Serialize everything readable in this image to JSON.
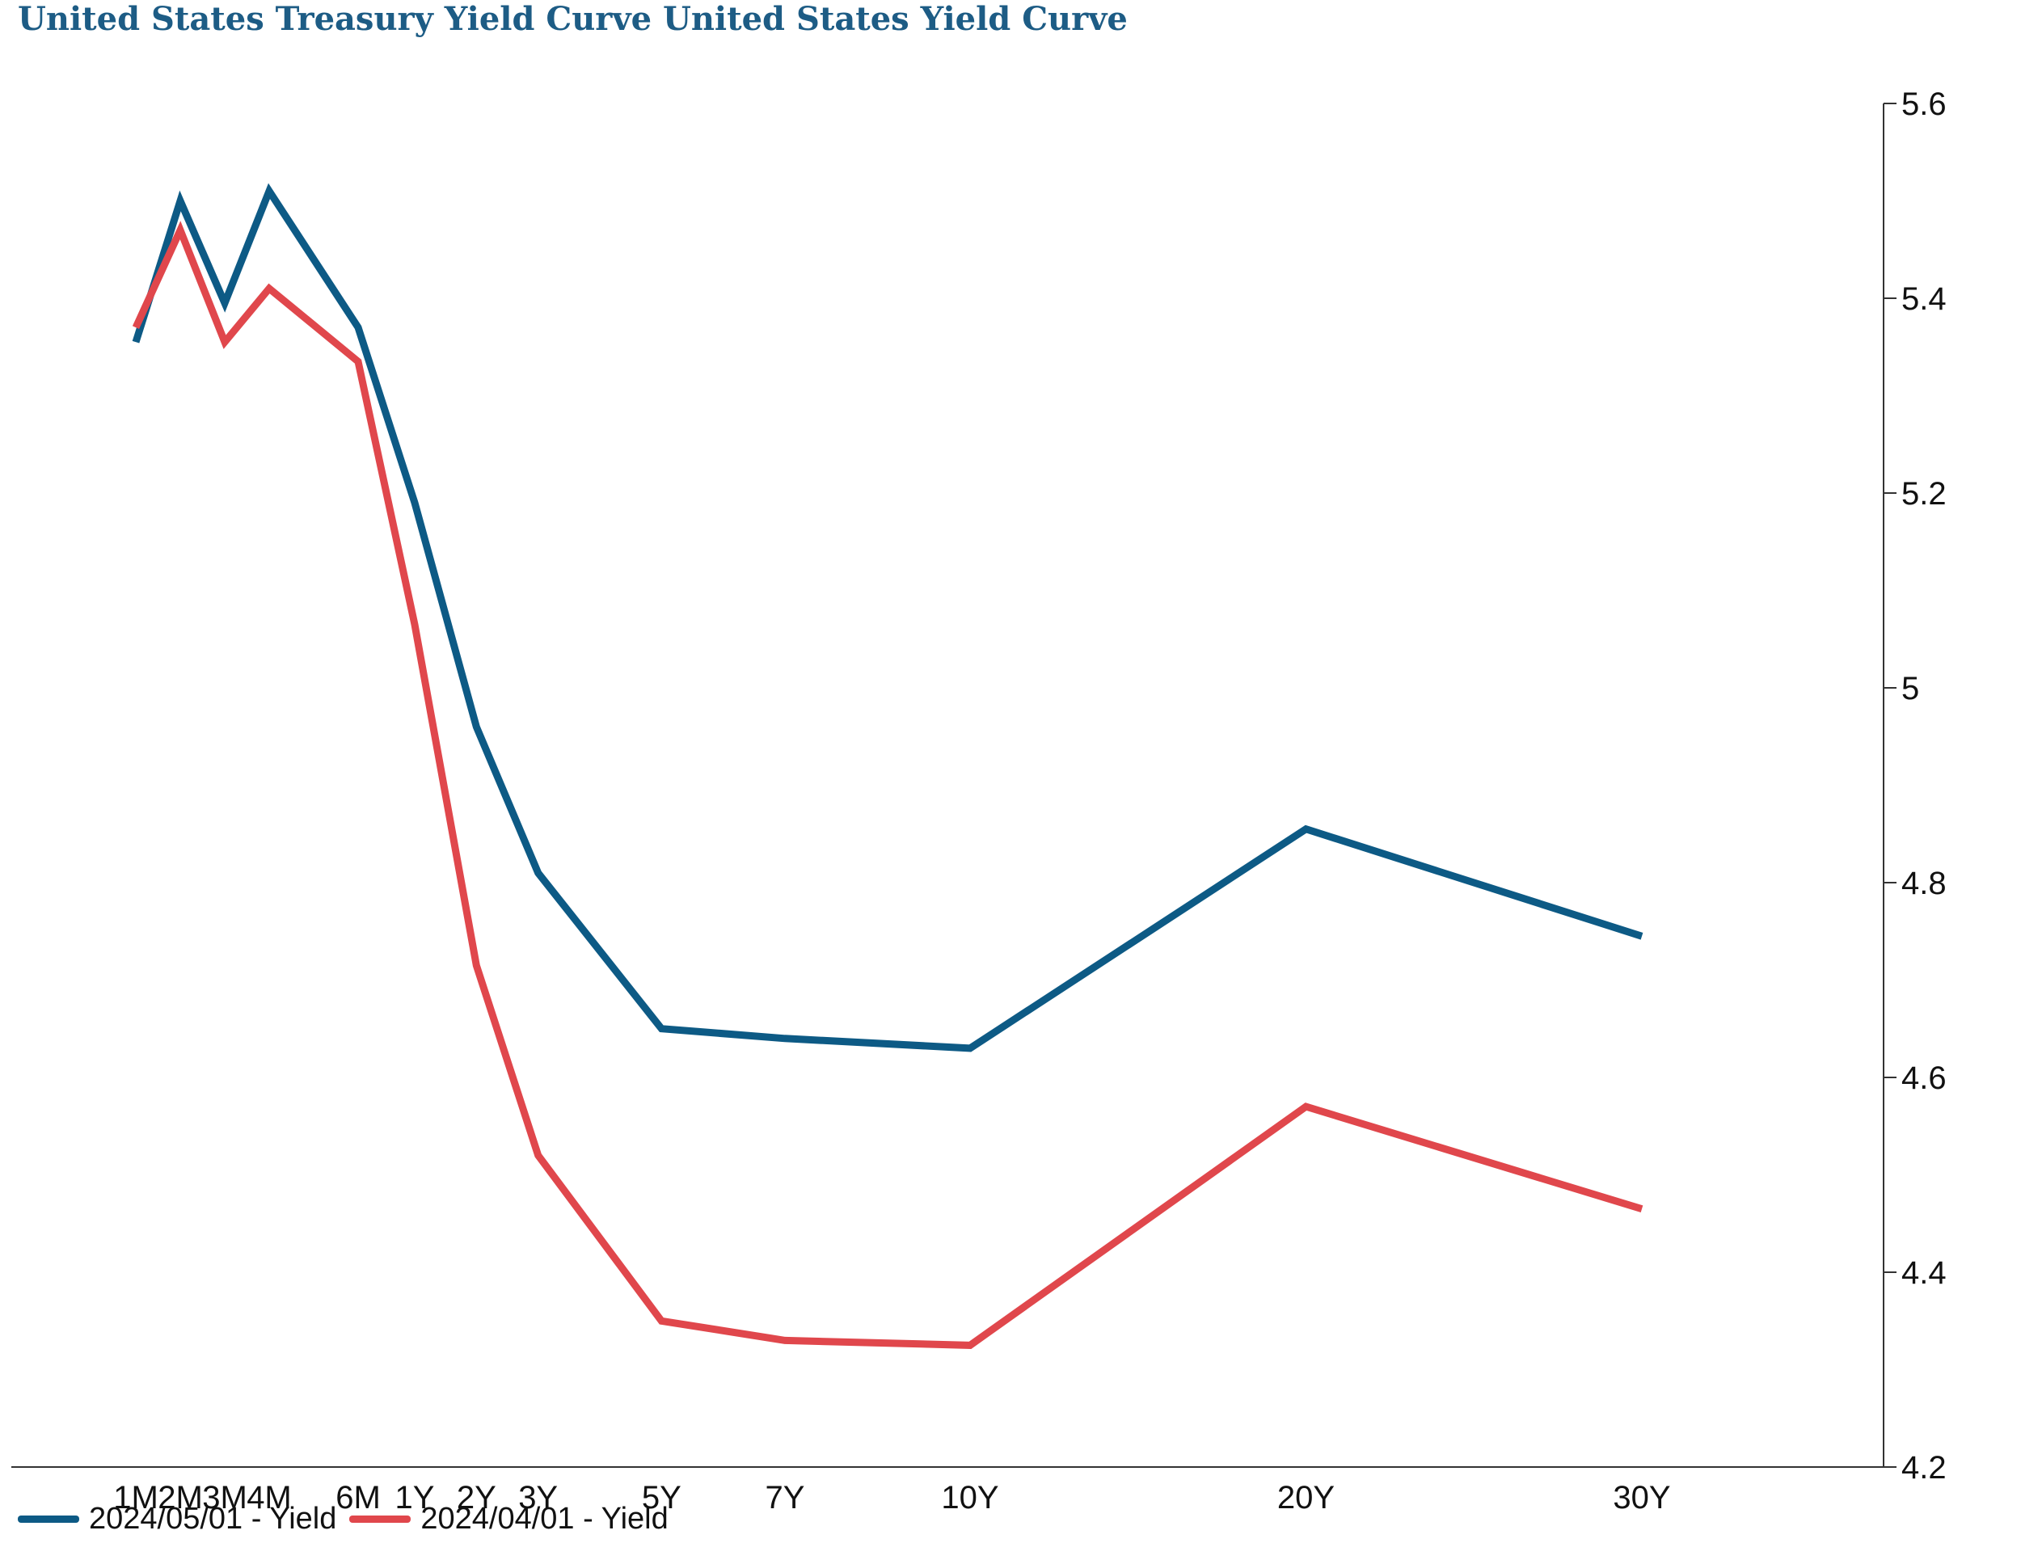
{
  "chart_data": {
    "type": "line",
    "title": "United States Treasury Yield Curve United States Yield Curve",
    "categories": [
      "1M",
      "2M",
      "3M",
      "4M",
      "6M",
      "1Y",
      "2Y",
      "3Y",
      "5Y",
      "7Y",
      "10Y",
      "20Y",
      "30Y"
    ],
    "x_positions_years": [
      0.0833,
      0.1667,
      0.25,
      0.3333,
      0.5,
      1,
      2,
      3,
      5,
      7,
      10,
      20,
      30
    ],
    "series": [
      {
        "name": "2024/05/01 - Yield",
        "color": "#0d5a85",
        "values": [
          5.355,
          5.5,
          5.395,
          5.51,
          5.37,
          5.19,
          4.96,
          4.81,
          4.65,
          4.64,
          4.63,
          4.855,
          4.745
        ]
      },
      {
        "name": "2024/04/01 - Yield",
        "color": "#e0474c",
        "values": [
          5.37,
          5.47,
          5.355,
          5.41,
          5.335,
          5.065,
          4.715,
          4.52,
          4.35,
          4.33,
          4.325,
          4.57,
          4.465
        ]
      }
    ],
    "y_ticks": [
      "5.6",
      "5.4",
      "5.2",
      "5",
      "4.8",
      "4.6",
      "4.4",
      "4.2"
    ],
    "ylim": [
      4.2,
      5.6
    ],
    "y_axis_position": "right",
    "grid": false,
    "legend_position": "bottom-left",
    "xlabel": "",
    "ylabel": ""
  }
}
